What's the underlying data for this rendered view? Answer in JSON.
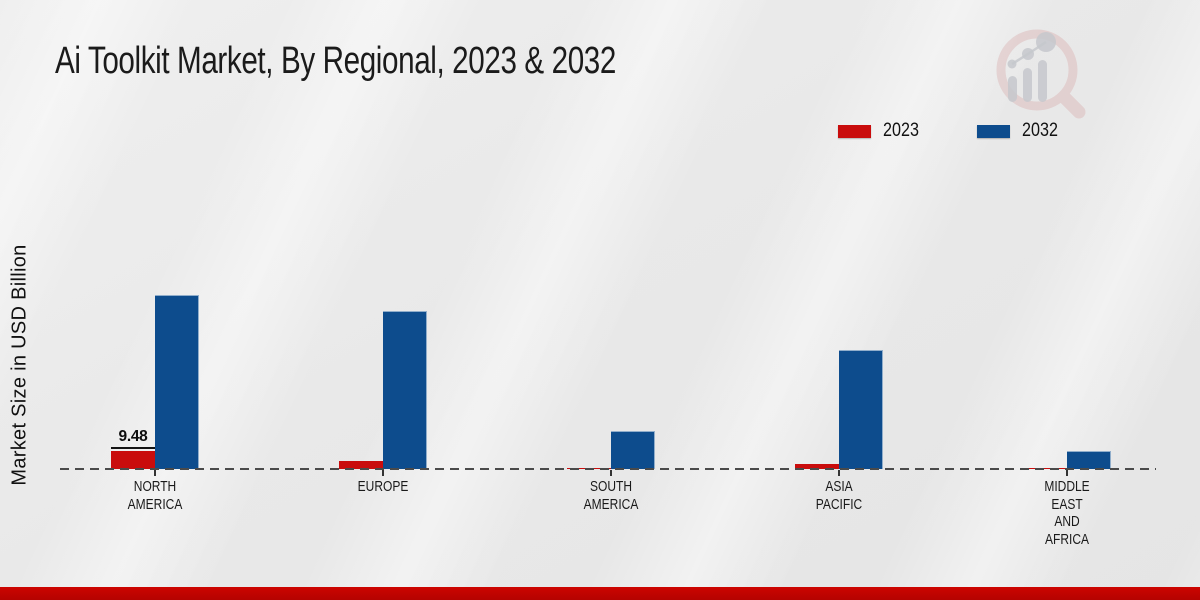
{
  "title": "Ai Toolkit Market, By Regional, 2023 & 2032",
  "y_axis_label": "Market Size in USD Billion",
  "legend": {
    "items": [
      {
        "label": "2023",
        "color": "#c90c0c"
      },
      {
        "label": "2032",
        "color": "#0d4c8d"
      }
    ]
  },
  "colors": {
    "series_2023": "#c90c0c",
    "series_2032": "#0d4c8d",
    "footer_strip": "#c00300",
    "baseline_dash": "#4a4a4a",
    "text": "#1a1a1a"
  },
  "chart_data": {
    "type": "bar",
    "title": "Ai Toolkit Market, By Regional, 2023 & 2032",
    "xlabel": "",
    "ylabel": "Market Size in USD Billion",
    "categories": [
      "NORTH AMERICA",
      "EUROPE",
      "SOUTH AMERICA",
      "ASIA PACIFIC",
      "MIDDLE EAST AND AFRICA"
    ],
    "category_label_lines": [
      [
        "NORTH",
        "AMERICA"
      ],
      [
        "EUROPE"
      ],
      [
        "SOUTH",
        "AMERICA"
      ],
      [
        "ASIA",
        "PACIFIC"
      ],
      [
        "MIDDLE",
        "EAST",
        "AND",
        "AFRICA"
      ]
    ],
    "series": [
      {
        "name": "2023",
        "color": "#c90c0c",
        "values": [
          9.48,
          4.2,
          0.8,
          2.9,
          0.4
        ]
      },
      {
        "name": "2032",
        "color": "#0d4c8d",
        "values": [
          93.5,
          85.3,
          20.5,
          64.0,
          9.5
        ]
      }
    ],
    "annotations": [
      {
        "series": "2023",
        "category": "NORTH AMERICA",
        "text": "9.48"
      }
    ],
    "ylim": [
      0,
      100
    ],
    "grid": false,
    "axis_style": "dashed zero baseline, no y ticks",
    "legend_position": "top-right"
  }
}
